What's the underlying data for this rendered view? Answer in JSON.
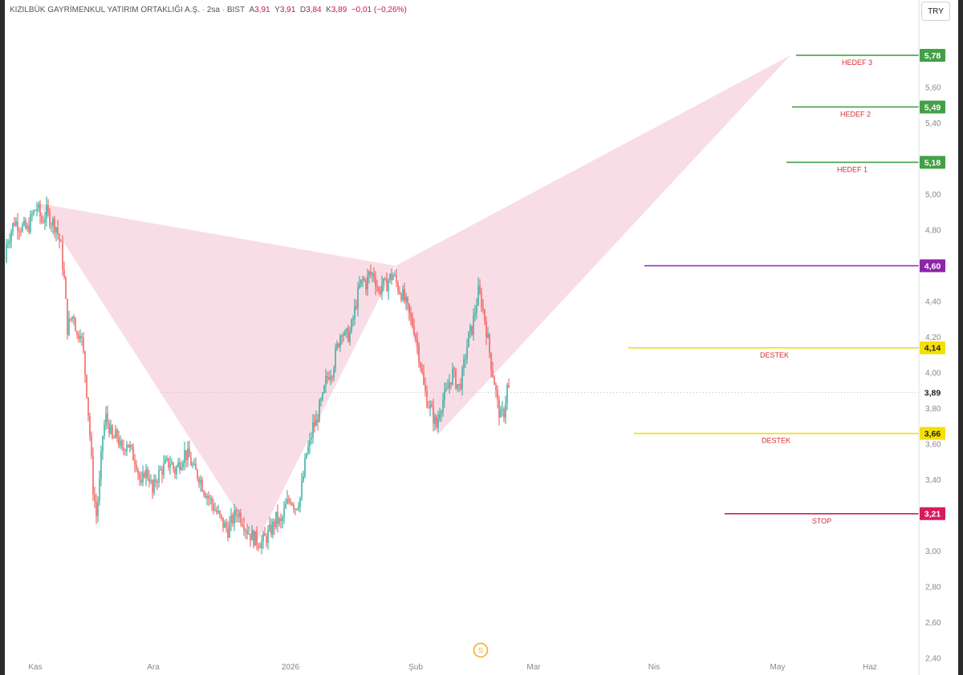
{
  "header": {
    "name": "KIZILBÜK GAYRİMENKUL YATIRIM ORTAKLIĞI A.Ş.",
    "sep1": "·",
    "interval": "2sa",
    "sep2": "·",
    "exchange": "BIST",
    "open_key": "A",
    "open_val": "3,91",
    "high_key": "Y",
    "high_val": "3,91",
    "low_key": "D",
    "low_val": "3,84",
    "close_key": "K",
    "close_val": "3,89",
    "change": "−0,01 (−0,26%)"
  },
  "currency_button": "TRY",
  "settings_icon": "S",
  "colors": {
    "up": "#26a69a",
    "down": "#ef5350",
    "pattern_fill": "#f8d7e2",
    "target_green": "#43a047",
    "resistance_purple": "#8e24aa",
    "support_yellow": "#f5e000",
    "stop_crimson": "#d81b60",
    "label_red": "#d32f2f"
  },
  "chart_data": {
    "type": "candlestick",
    "title": "KIZILBÜK GAYRİMENKUL YATIRIM ORTAKLIĞI A.Ş. · 2sa · BIST",
    "ylim": [
      2.4,
      5.9
    ],
    "y_ticks": [
      "2,40",
      "2,60",
      "2,80",
      "3,00",
      "3,20",
      "3,40",
      "3,60",
      "3,80",
      "4,00",
      "4,20",
      "4,40",
      "4,60",
      "4,80",
      "5,00",
      "5,20",
      "5,40",
      "5,60",
      "5,80"
    ],
    "x_ticks": [
      "Kas",
      "Ara",
      "2026",
      "Şub",
      "Mar",
      "Nis",
      "May",
      "Haz"
    ],
    "last_price": "3,89",
    "price_path": [
      [
        0,
        4.62
      ],
      [
        10,
        4.75
      ],
      [
        18,
        4.85
      ],
      [
        26,
        4.82
      ],
      [
        34,
        4.8
      ],
      [
        40,
        4.88
      ],
      [
        46,
        4.93
      ],
      [
        52,
        4.85
      ],
      [
        58,
        4.9
      ],
      [
        64,
        4.85
      ],
      [
        70,
        4.82
      ],
      [
        76,
        4.7
      ],
      [
        80,
        4.52
      ],
      [
        84,
        4.25
      ],
      [
        88,
        4.3
      ],
      [
        92,
        4.33
      ],
      [
        96,
        4.2
      ],
      [
        100,
        4.25
      ],
      [
        104,
        4.1
      ],
      [
        108,
        3.9
      ],
      [
        112,
        3.65
      ],
      [
        116,
        3.35
      ],
      [
        120,
        3.2
      ],
      [
        124,
        3.38
      ],
      [
        128,
        3.65
      ],
      [
        132,
        3.75
      ],
      [
        136,
        3.7
      ],
      [
        140,
        3.62
      ],
      [
        146,
        3.65
      ],
      [
        152,
        3.55
      ],
      [
        158,
        3.62
      ],
      [
        164,
        3.55
      ],
      [
        170,
        3.5
      ],
      [
        176,
        3.35
      ],
      [
        180,
        3.45
      ],
      [
        186,
        3.42
      ],
      [
        190,
        3.32
      ],
      [
        194,
        3.4
      ],
      [
        200,
        3.45
      ],
      [
        206,
        3.48
      ],
      [
        212,
        3.5
      ],
      [
        218,
        3.45
      ],
      [
        224,
        3.5
      ],
      [
        230,
        3.55
      ],
      [
        236,
        3.52
      ],
      [
        242,
        3.45
      ],
      [
        248,
        3.42
      ],
      [
        254,
        3.35
      ],
      [
        260,
        3.3
      ],
      [
        266,
        3.25
      ],
      [
        272,
        3.2
      ],
      [
        278,
        3.15
      ],
      [
        284,
        3.12
      ],
      [
        290,
        3.18
      ],
      [
        296,
        3.22
      ],
      [
        302,
        3.18
      ],
      [
        308,
        3.12
      ],
      [
        314,
        3.08
      ],
      [
        320,
        3.06
      ],
      [
        326,
        3.05
      ],
      [
        332,
        3.08
      ],
      [
        338,
        3.12
      ],
      [
        344,
        3.18
      ],
      [
        350,
        3.15
      ],
      [
        356,
        3.25
      ],
      [
        362,
        3.3
      ],
      [
        368,
        3.25
      ],
      [
        374,
        3.3
      ],
      [
        378,
        3.42
      ],
      [
        382,
        3.55
      ],
      [
        386,
        3.6
      ],
      [
        390,
        3.7
      ],
      [
        394,
        3.72
      ],
      [
        398,
        3.8
      ],
      [
        402,
        3.85
      ],
      [
        406,
        3.95
      ],
      [
        410,
        4.0
      ],
      [
        414,
        4.02
      ],
      [
        418,
        4.1
      ],
      [
        422,
        4.18
      ],
      [
        426,
        4.25
      ],
      [
        430,
        4.2
      ],
      [
        436,
        4.22
      ],
      [
        440,
        4.3
      ],
      [
        444,
        4.4
      ],
      [
        448,
        4.48
      ],
      [
        452,
        4.52
      ],
      [
        456,
        4.5
      ],
      [
        460,
        4.55
      ],
      [
        466,
        4.55
      ],
      [
        472,
        4.45
      ],
      [
        476,
        4.5
      ],
      [
        480,
        4.48
      ],
      [
        484,
        4.52
      ],
      [
        490,
        4.55
      ],
      [
        496,
        4.48
      ],
      [
        500,
        4.45
      ],
      [
        506,
        4.38
      ],
      [
        510,
        4.32
      ],
      [
        516,
        4.25
      ],
      [
        520,
        4.15
      ],
      [
        524,
        4.05
      ],
      [
        528,
        3.92
      ],
      [
        532,
        3.85
      ],
      [
        536,
        3.8
      ],
      [
        540,
        3.75
      ],
      [
        544,
        3.7
      ],
      [
        548,
        3.8
      ],
      [
        552,
        3.85
      ],
      [
        556,
        3.88
      ],
      [
        560,
        3.95
      ],
      [
        564,
        4.0
      ],
      [
        568,
        3.95
      ],
      [
        572,
        3.92
      ],
      [
        576,
        3.98
      ],
      [
        580,
        4.1
      ],
      [
        584,
        4.2
      ],
      [
        588,
        4.25
      ],
      [
        592,
        4.35
      ],
      [
        596,
        4.45
      ],
      [
        600,
        4.4
      ],
      [
        604,
        4.3
      ],
      [
        608,
        4.18
      ],
      [
        612,
        4.05
      ],
      [
        616,
        3.95
      ],
      [
        620,
        3.82
      ],
      [
        624,
        3.75
      ],
      [
        628,
        3.78
      ],
      [
        632,
        3.92
      ],
      [
        636,
        3.89
      ]
    ]
  },
  "pattern_points": [
    {
      "x": 48,
      "price": 4.95
    },
    {
      "x": 320,
      "price": 3.05
    },
    {
      "x": 493,
      "price": 4.6
    },
    {
      "x": 545,
      "price": 3.65
    },
    {
      "x": 985,
      "price": 5.78
    }
  ],
  "levels": [
    {
      "id": "hedef3",
      "price": 5.78,
      "label": "HEDEF 3",
      "tag": "5,78",
      "color": "#43a047",
      "text": "#ffffff",
      "x1": 992,
      "labelx": 1068
    },
    {
      "id": "hedef2",
      "price": 5.49,
      "label": "HEDEF 2",
      "tag": "5,49",
      "color": "#43a047",
      "text": "#ffffff",
      "x1": 987,
      "labelx": 1066
    },
    {
      "id": "hedef1",
      "price": 5.18,
      "label": "HEDEF 1",
      "tag": "5,18",
      "color": "#43a047",
      "text": "#ffffff",
      "x1": 980,
      "labelx": 1062
    },
    {
      "id": "resist",
      "price": 4.6,
      "label": "",
      "tag": "4,60",
      "color": "#8e24aa",
      "text": "#ffffff",
      "x1": 803,
      "labelx": 0
    },
    {
      "id": "destek1",
      "price": 4.14,
      "label": "DESTEK",
      "tag": "4,14",
      "color": "#f5e000",
      "text": "#222222",
      "x1": 783,
      "labelx": 965
    },
    {
      "id": "destek2",
      "price": 3.66,
      "label": "DESTEK",
      "tag": "3,66",
      "color": "#f5e000",
      "text": "#222222",
      "x1": 790,
      "labelx": 967
    },
    {
      "id": "stop",
      "price": 3.21,
      "label": "STOP",
      "tag": "3,21",
      "color": "#d81b60",
      "text": "#ffffff",
      "x1": 903,
      "labelx": 1024
    }
  ]
}
